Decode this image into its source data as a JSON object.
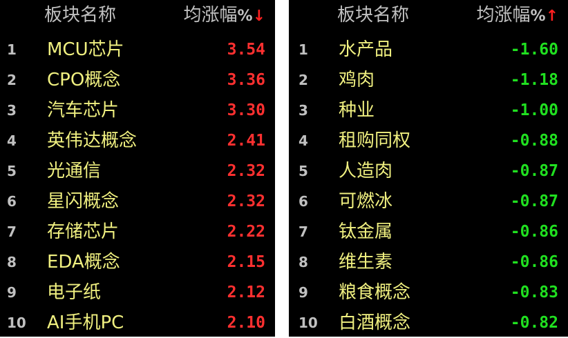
{
  "colors": {
    "up": "#ff3030",
    "down": "#20e020",
    "name": "#f0f080",
    "header": "#c0c0c0",
    "background": "#000000"
  },
  "left": {
    "header": {
      "name": "板块名称",
      "change": "均涨幅",
      "percent": "%",
      "sort_arrow": "↓"
    },
    "rows": [
      [
        "1",
        "MCU芯片",
        "3.54"
      ],
      [
        "2",
        "CPO概念",
        "3.36"
      ],
      [
        "3",
        "汽车芯片",
        "3.30"
      ],
      [
        "4",
        "英伟达概念",
        "2.41"
      ],
      [
        "5",
        "光通信",
        "2.32"
      ],
      [
        "6",
        "星闪概念",
        "2.32"
      ],
      [
        "7",
        "存储芯片",
        "2.22"
      ],
      [
        "8",
        "EDA概念",
        "2.15"
      ],
      [
        "9",
        "电子纸",
        "2.12"
      ],
      [
        "10",
        "AI手机PC",
        "2.10"
      ]
    ]
  },
  "right": {
    "header": {
      "name": "板块名称",
      "change": "均涨幅",
      "percent": "%",
      "sort_arrow": "↑"
    },
    "rows": [
      [
        "1",
        "水产品",
        "-1.60"
      ],
      [
        "2",
        "鸡肉",
        "-1.18"
      ],
      [
        "3",
        "种业",
        "-1.00"
      ],
      [
        "4",
        "租购同权",
        "-0.88"
      ],
      [
        "5",
        "人造肉",
        "-0.87"
      ],
      [
        "6",
        "可燃冰",
        "-0.87"
      ],
      [
        "7",
        "钛金属",
        "-0.86"
      ],
      [
        "8",
        "维生素",
        "-0.86"
      ],
      [
        "9",
        "粮食概念",
        "-0.83"
      ],
      [
        "10",
        "白酒概念",
        "-0.82"
      ]
    ]
  }
}
